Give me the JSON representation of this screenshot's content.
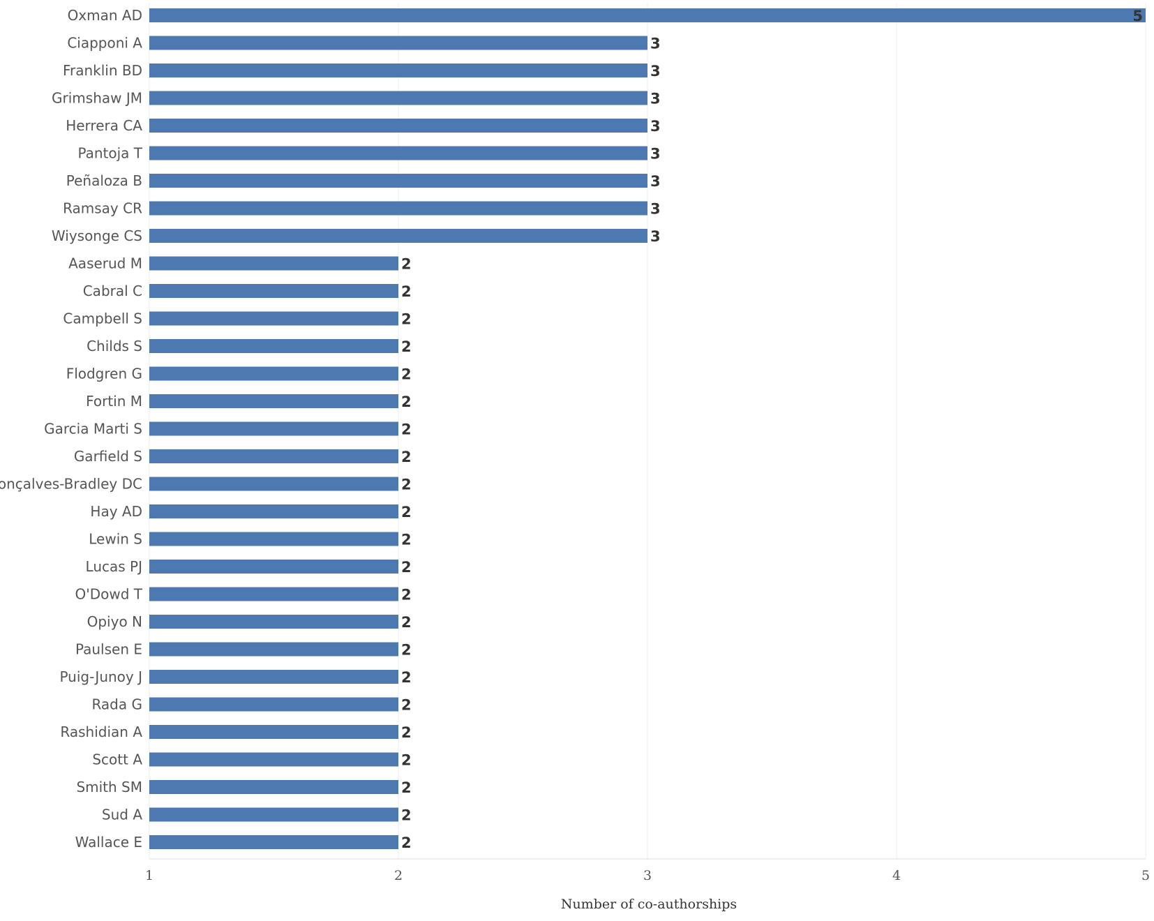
{
  "chart_data": {
    "type": "bar",
    "orientation": "horizontal",
    "title": "",
    "xlabel": "Number of co-authorships",
    "ylabel": "",
    "xlim": [
      1,
      5
    ],
    "xticks": [
      1,
      2,
      3,
      4,
      5
    ],
    "grid": true,
    "bar_color": "#4e79b0",
    "categories": [
      "Oxman AD",
      "Ciapponi A",
      "Franklin BD",
      "Grimshaw JM",
      "Herrera CA",
      "Pantoja T",
      "Peñaloza B",
      "Ramsay CR",
      "Wiysonge CS",
      "Aaserud M",
      "Cabral C",
      "Campbell S",
      "Childs S",
      "Flodgren G",
      "Fortin M",
      "Garcia Marti S",
      "Garfield S",
      "Gonçalves-Bradley DC",
      "Hay AD",
      "Lewin S",
      "Lucas PJ",
      "O'Dowd T",
      "Opiyo N",
      "Paulsen E",
      "Puig-Junoy J",
      "Rada G",
      "Rashidian A",
      "Scott A",
      "Smith SM",
      "Sud A",
      "Wallace E"
    ],
    "values": [
      5,
      3,
      3,
      3,
      3,
      3,
      3,
      3,
      3,
      2,
      2,
      2,
      2,
      2,
      2,
      2,
      2,
      2,
      2,
      2,
      2,
      2,
      2,
      2,
      2,
      2,
      2,
      2,
      2,
      2,
      2
    ]
  }
}
